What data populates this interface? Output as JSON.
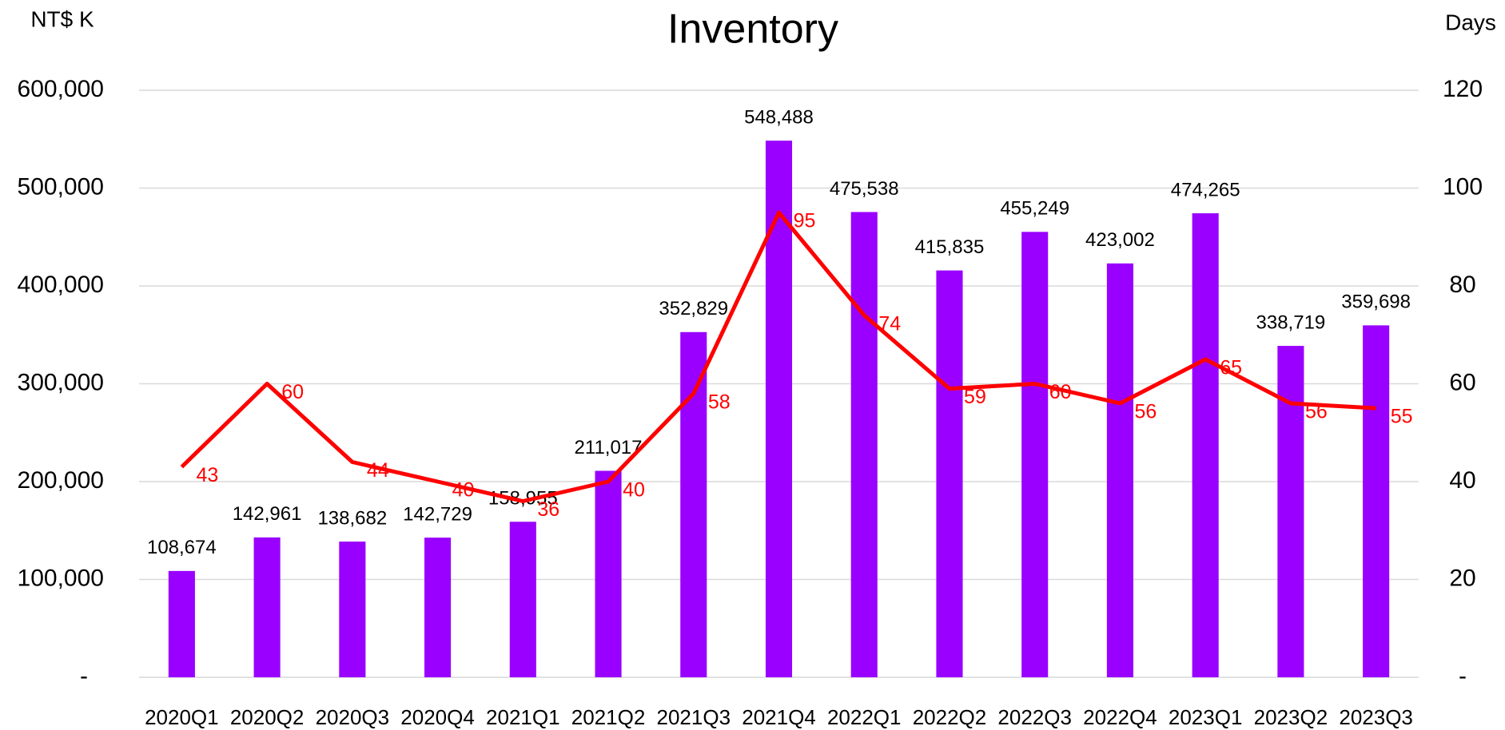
{
  "chart_data": {
    "type": "combo",
    "title": "Inventory",
    "ylabel": "NT$ K",
    "y2label": "Days",
    "categories": [
      "2020Q1",
      "2020Q2",
      "2020Q3",
      "2020Q4",
      "2021Q1",
      "2021Q2",
      "2021Q3",
      "2021Q4",
      "2022Q1",
      "2022Q2",
      "2022Q3",
      "2022Q4",
      "2023Q1",
      "2023Q2",
      "2023Q3"
    ],
    "series": [
      {
        "type": "bar",
        "color": "#9900ff",
        "values": [
          108674,
          142961,
          138682,
          142729,
          158955,
          211017,
          352829,
          548488,
          475538,
          415835,
          455249,
          423002,
          474265,
          338719,
          359698
        ],
        "value_labels": [
          "108,674",
          "142,961",
          "138,682",
          "142,729",
          "158,955",
          "211,017",
          "352,829",
          "548,488",
          "475,538",
          "415,835",
          "455,249",
          "423,002",
          "474,265",
          "338,719",
          "359,698"
        ]
      },
      {
        "type": "line",
        "axis": "y2",
        "color": "#ff0000",
        "values": [
          43,
          60,
          44,
          40,
          36,
          40,
          58,
          95,
          74,
          59,
          60,
          56,
          65,
          56,
          55
        ]
      }
    ],
    "ylim": [
      0,
      600000
    ],
    "yticks": [
      {
        "value": 0,
        "label": "-"
      },
      {
        "value": 100000,
        "label": "100,000"
      },
      {
        "value": 200000,
        "label": "200,000"
      },
      {
        "value": 300000,
        "label": "300,000"
      },
      {
        "value": 400000,
        "label": "400,000"
      },
      {
        "value": 500000,
        "label": "500,000"
      },
      {
        "value": 600000,
        "label": "600,000"
      }
    ],
    "y2lim": [
      0,
      120
    ],
    "y2ticks": [
      {
        "value": 0,
        "label": "-"
      },
      20,
      40,
      60,
      80,
      100,
      120
    ],
    "grid": true
  }
}
